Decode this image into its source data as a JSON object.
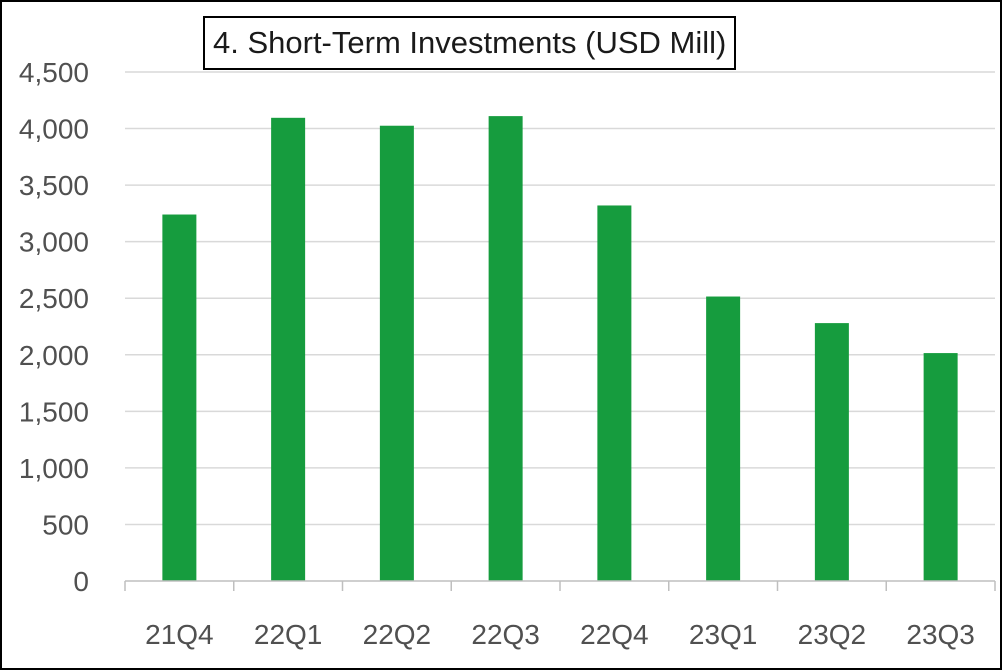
{
  "chart_data": {
    "type": "bar",
    "title": "4. Short-Term Investments (USD Mill)",
    "xlabel": "",
    "ylabel": "",
    "categories": [
      "21Q4",
      "22Q1",
      "22Q2",
      "22Q3",
      "22Q4",
      "23Q1",
      "23Q2",
      "23Q3"
    ],
    "values": [
      3240,
      4095,
      4025,
      4110,
      3320,
      2515,
      2280,
      2015
    ],
    "ylim": [
      0,
      4500
    ],
    "yticks": [
      0,
      500,
      1000,
      1500,
      2000,
      2500,
      3000,
      3500,
      4000,
      4500
    ],
    "ytick_labels": [
      "0",
      "500",
      "1,000",
      "1,500",
      "2,000",
      "2,500",
      "3,000",
      "3,500",
      "4,000",
      "4,500"
    ],
    "grid": true,
    "legend": "none",
    "colors": {
      "bar": "#169C3E",
      "grid": "#D9D9D9",
      "axis": "#BFBFBF",
      "tick_text": "#505050"
    }
  }
}
